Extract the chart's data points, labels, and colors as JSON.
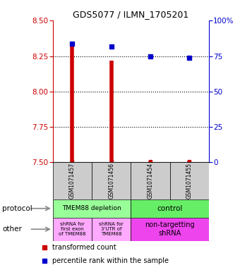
{
  "title": "GDS5077 / ILMN_1705201",
  "samples": [
    "GSM1071457",
    "GSM1071456",
    "GSM1071454",
    "GSM1071455"
  ],
  "red_values": [
    8.34,
    8.22,
    7.51,
    7.51
  ],
  "blue_values": [
    84,
    82,
    75,
    74
  ],
  "ylim_left": [
    7.5,
    8.5
  ],
  "ylim_right": [
    0,
    100
  ],
  "yticks_left": [
    7.5,
    7.75,
    8.0,
    8.25,
    8.5
  ],
  "yticks_right": [
    0,
    25,
    50,
    75,
    100
  ],
  "ytick_labels_right": [
    "0",
    "25",
    "50",
    "75",
    "100%"
  ],
  "red_color": "#cc0000",
  "blue_color": "#0000cc",
  "protocol_labels": [
    "TMEM88 depletion",
    "control"
  ],
  "other_labels_left1": "shRNA for\nfirst exon\nof TMEM88",
  "other_labels_left2": "shRNA for\n3'UTR of\nTMEM88",
  "other_labels_right": "non-targetting\nshRNA",
  "protocol_color_left": "#99ff99",
  "protocol_color_right": "#66ee66",
  "other_color_left": "#ffaaff",
  "other_color_right": "#ee44ee",
  "sample_bg_color": "#cccccc",
  "legend_red": "transformed count",
  "legend_blue": "percentile rank within the sample",
  "dotted_ticks": [
    7.75,
    8.0,
    8.25
  ]
}
